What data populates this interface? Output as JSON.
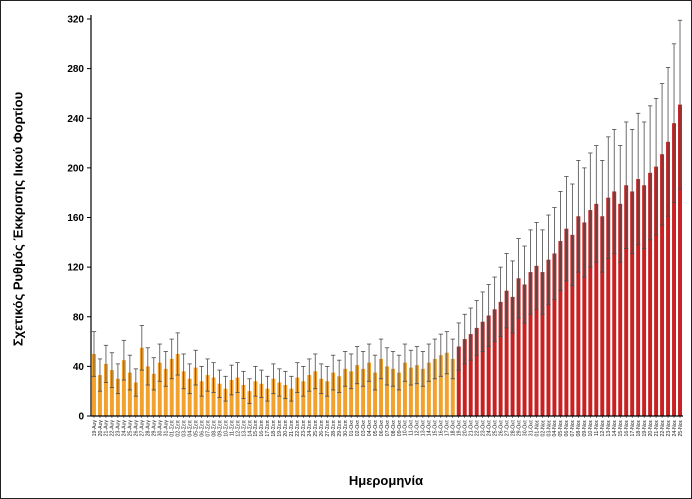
{
  "figure": {
    "ylabel": "Σχετικός Ρυθμός Έκκρισης Ιικού Φορτίου",
    "xlabel": "Ημερομηνία"
  },
  "chart_data": {
    "type": "bar",
    "title": "",
    "ylabel": "Σχετικός Ρυθμός Έκκρισης Ιικού Φορτίου",
    "xlabel": "Ημερομηνία",
    "ylim": [
      0,
      320
    ],
    "yticks": [
      0,
      40,
      80,
      120,
      160,
      200,
      240,
      280,
      320
    ],
    "grid": false,
    "legend_position": "none",
    "error_bars": true,
    "red_start_index": 61,
    "colors": {
      "early_bar": "#F2A22C",
      "late_bar": "#C92121",
      "error_bar": "#4a4a4a",
      "axis": "#000000"
    },
    "categories": [
      "19-Αυγ",
      "20-Αυγ",
      "21-Αυγ",
      "22-Αυγ",
      "23-Αυγ",
      "24-Αυγ",
      "25-Αυγ",
      "26-Αυγ",
      "27-Αυγ",
      "28-Αυγ",
      "29-Αυγ",
      "30-Αυγ",
      "31-Αυγ",
      "01-Σεπ",
      "02-Σεπ",
      "03-Σεπ",
      "04-Σεπ",
      "05-Σεπ",
      "06-Σεπ",
      "07-Σεπ",
      "08-Σεπ",
      "09-Σεπ",
      "10-Σεπ",
      "11-Σεπ",
      "12-Σεπ",
      "13-Σεπ",
      "14-Σεπ",
      "15-Σεπ",
      "16-Σεπ",
      "17-Σεπ",
      "18-Σεπ",
      "19-Σεπ",
      "20-Σεπ",
      "21-Σεπ",
      "22-Σεπ",
      "23-Σεπ",
      "24-Σεπ",
      "25-Σεπ",
      "26-Σεπ",
      "27-Σεπ",
      "28-Σεπ",
      "29-Σεπ",
      "30-Σεπ",
      "01-Οκτ",
      "02-Οκτ",
      "03-Οκτ",
      "04-Οκτ",
      "05-Οκτ",
      "06-Οκτ",
      "07-Οκτ",
      "08-Οκτ",
      "09-Οκτ",
      "10-Οκτ",
      "11-Οκτ",
      "12-Οκτ",
      "13-Οκτ",
      "14-Οκτ",
      "15-Οκτ",
      "16-Οκτ",
      "17-Οκτ",
      "18-Οκτ",
      "19-Οκτ",
      "20-Οκτ",
      "21-Οκτ",
      "22-Οκτ",
      "23-Οκτ",
      "24-Οκτ",
      "25-Οκτ",
      "26-Οκτ",
      "27-Οκτ",
      "28-Οκτ",
      "29-Οκτ",
      "30-Οκτ",
      "31-Οκτ",
      "01-Νοε",
      "02-Νοε",
      "03-Νοε",
      "04-Νοε",
      "05-Νοε",
      "06-Νοε",
      "07-Νοε",
      "08-Νοε",
      "09-Νοε",
      "10-Νοε",
      "11-Νοε",
      "12-Νοε",
      "13-Νοε",
      "14-Νοε",
      "15-Νοε",
      "16-Νοε",
      "17-Νοε",
      "18-Νοε",
      "19-Νοε",
      "20-Νοε",
      "21-Νοε",
      "22-Νοε",
      "23-Νοε",
      "24-Νοε",
      "25-Νοε"
    ],
    "values": [
      50,
      33,
      42,
      37,
      30,
      45,
      35,
      27,
      55,
      40,
      34,
      43,
      38,
      46,
      50,
      36,
      30,
      39,
      28,
      33,
      31,
      26,
      22,
      29,
      31,
      25,
      20,
      28,
      26,
      22,
      30,
      27,
      25,
      22,
      31,
      28,
      33,
      36,
      30,
      28,
      35,
      32,
      38,
      36,
      41,
      38,
      43,
      35,
      46,
      40,
      38,
      35,
      43,
      39,
      41,
      38,
      43,
      46,
      49,
      51,
      46,
      56,
      62,
      66,
      71,
      76,
      81,
      86,
      92,
      101,
      96,
      111,
      106,
      116,
      121,
      116,
      126,
      131,
      141,
      151,
      146,
      161,
      156,
      166,
      171,
      161,
      176,
      181,
      171,
      186,
      181,
      191,
      186,
      196,
      201,
      211,
      221,
      236,
      251
    ],
    "errors": [
      18,
      13,
      15,
      14,
      12,
      16,
      14,
      11,
      18,
      15,
      13,
      15,
      14,
      16,
      17,
      14,
      12,
      14,
      12,
      13,
      12,
      11,
      10,
      12,
      12,
      11,
      10,
      12,
      11,
      10,
      12,
      11,
      11,
      10,
      12,
      12,
      13,
      14,
      12,
      12,
      14,
      13,
      14,
      14,
      15,
      14,
      15,
      14,
      16,
      15,
      14,
      14,
      15,
      14,
      15,
      14,
      15,
      16,
      17,
      17,
      16,
      19,
      20,
      21,
      22,
      24,
      25,
      26,
      28,
      30,
      29,
      32,
      31,
      34,
      35,
      34,
      36,
      37,
      40,
      42,
      41,
      45,
      44,
      46,
      47,
      45,
      49,
      50,
      47,
      51,
      50,
      53,
      51,
      54,
      55,
      57,
      60,
      64,
      68
    ]
  }
}
